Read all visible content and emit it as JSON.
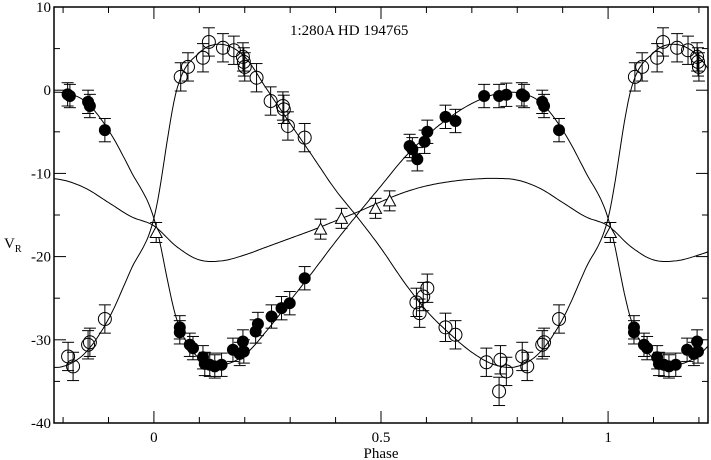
{
  "chart_data": {
    "type": "scatter",
    "title": "1:280A   HD 194765",
    "xlabel": "Phase",
    "ylabel": "V",
    "ylabel_sub": "R",
    "xlim": [
      -0.22,
      1.22
    ],
    "ylim": [
      -40,
      10
    ],
    "x_major_ticks": [
      0,
      0.5,
      1
    ],
    "x_tick_labels": [
      "0",
      "0.5",
      "1"
    ],
    "x_minor_step": 0.1,
    "y_major_ticks": [
      -40,
      -30,
      -20,
      -10,
      0,
      10
    ],
    "y_tick_labels": [
      "-40",
      "-30",
      "-20",
      "-10",
      "0",
      "10"
    ],
    "y_minor_step": 5,
    "grid": false,
    "phase_repeat": true,
    "series": [
      {
        "marker": "filled-circle",
        "error": 0.8,
        "points": [
          [
            0.057,
            -28.5
          ],
          [
            0.057,
            -29.1
          ],
          [
            0.079,
            -30.6
          ],
          [
            0.086,
            -31.0
          ],
          [
            0.108,
            -32.1
          ],
          [
            0.112,
            -32.9
          ],
          [
            0.123,
            -33.0
          ],
          [
            0.134,
            -33.2
          ],
          [
            0.149,
            -33.0
          ],
          [
            0.174,
            -31.2
          ],
          [
            0.189,
            -31.7
          ],
          [
            0.196,
            -30.2
          ],
          [
            0.198,
            -31.4
          ],
          [
            0.224,
            -29.0
          ],
          [
            0.229,
            -28.1
          ],
          [
            0.259,
            -27.2
          ],
          [
            0.281,
            -26.2
          ],
          [
            0.299,
            -25.6
          ],
          [
            0.332,
            -22.6
          ],
          [
            0.563,
            -6.7
          ],
          [
            0.569,
            -7.1
          ],
          [
            0.58,
            -8.3
          ],
          [
            0.596,
            -6.2
          ],
          [
            0.602,
            -5.0
          ],
          [
            0.642,
            -3.2
          ],
          [
            0.664,
            -3.7
          ],
          [
            0.727,
            -0.7
          ],
          [
            0.76,
            -0.7
          ],
          [
            0.776,
            -0.55
          ],
          [
            0.81,
            -0.5
          ],
          [
            0.815,
            -0.7
          ],
          [
            0.855,
            -1.4
          ],
          [
            0.859,
            -1.9
          ],
          [
            0.892,
            -4.8
          ]
        ],
        "curve": [
          -15.4,
          -27.5,
          -32.3,
          -33.0,
          -31.8,
          -28.8,
          -25.3,
          -21.8,
          -18.2,
          -14.8,
          -11.5,
          -8.2,
          -5.5,
          -3.3,
          -1.6,
          -0.5,
          -0.3,
          -1.4,
          -4.8,
          -9.8
        ]
      },
      {
        "marker": "open-circle",
        "error": 1.1,
        "points": [
          [
            0.059,
            1.6
          ],
          [
            0.075,
            2.8
          ],
          [
            0.108,
            3.9
          ],
          [
            0.121,
            5.8
          ],
          [
            0.152,
            5.1
          ],
          [
            0.176,
            4.8
          ],
          [
            0.196,
            4.0
          ],
          [
            0.198,
            3.4
          ],
          [
            0.2,
            2.8
          ],
          [
            0.226,
            1.5
          ],
          [
            0.257,
            -1.3
          ],
          [
            0.284,
            -1.9
          ],
          [
            0.286,
            -2.3
          ],
          [
            0.295,
            -4.3
          ],
          [
            0.332,
            -5.7
          ],
          [
            0.578,
            -25.5
          ],
          [
            0.585,
            -26.8
          ],
          [
            0.593,
            -24.8
          ],
          [
            0.602,
            -23.8
          ],
          [
            0.642,
            -28.5
          ],
          [
            0.664,
            -29.4
          ],
          [
            0.732,
            -32.7
          ],
          [
            0.76,
            -36.2
          ],
          [
            0.763,
            -32.4
          ],
          [
            0.776,
            -33.8
          ],
          [
            0.811,
            -32.0
          ],
          [
            0.822,
            -33.2
          ],
          [
            0.855,
            -30.6
          ],
          [
            0.859,
            -30.3
          ],
          [
            0.892,
            -27.5
          ]
        ],
        "curve": [
          -15.4,
          0.0,
          4.5,
          5.5,
          4.0,
          0.0,
          -4.0,
          -8.0,
          -12.0,
          -15.4,
          -19.0,
          -23.0,
          -26.5,
          -29.2,
          -31.5,
          -33.0,
          -33.2,
          -31.5,
          -27.5,
          -21.5
        ]
      },
      {
        "marker": "open-triangle",
        "error": 0.6,
        "points": [
          [
            0.005,
            -17.1
          ],
          [
            0.367,
            -16.7
          ],
          [
            0.413,
            -15.4
          ],
          [
            0.488,
            -14.2
          ],
          [
            0.519,
            -13.3
          ]
        ],
        "curve": [
          -16.3,
          -18.8,
          -20.4,
          -20.5,
          -19.8,
          -18.8,
          -17.8,
          -16.8,
          -15.7,
          -14.6,
          -13.4,
          -12.3,
          -11.5,
          -11.0,
          -10.7,
          -10.6,
          -10.8,
          -11.8,
          -13.5,
          -15.2
        ]
      }
    ]
  }
}
